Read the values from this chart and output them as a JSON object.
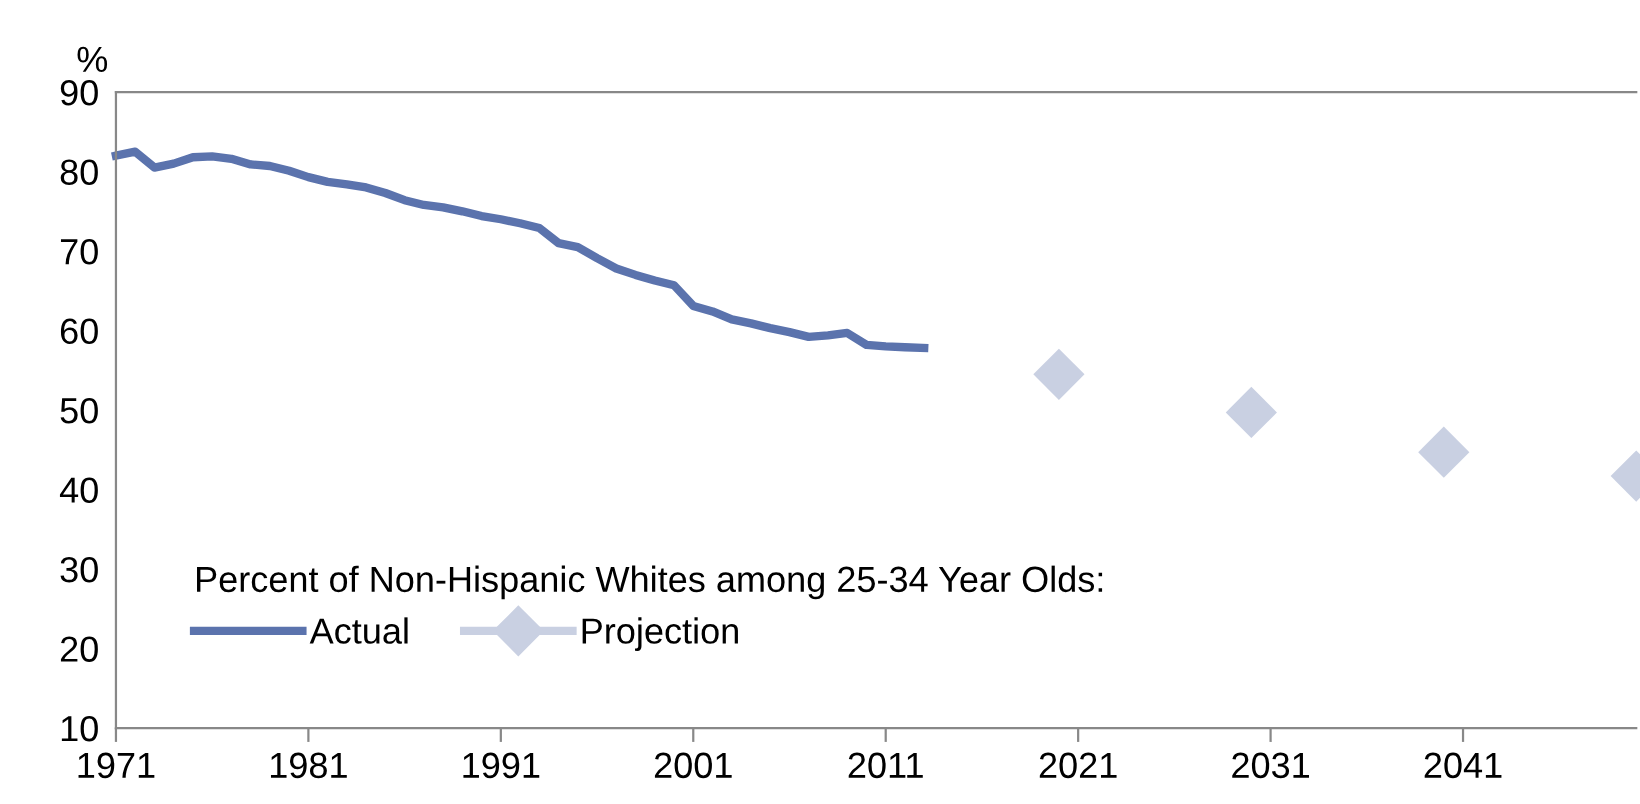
{
  "chart_data": {
    "type": "line",
    "ylabel": "%",
    "legend_title": "Percent of Non-Hispanic Whites among 25-34 Year Olds:",
    "legend": "bottom left",
    "grid": false,
    "xlim": [
      1971,
      2050
    ],
    "xticks": [
      1971,
      1981,
      1991,
      2001,
      2011,
      2021,
      2031,
      2041
    ],
    "ylim": [
      10,
      90
    ],
    "yticks": [
      10,
      20,
      30,
      40,
      50,
      60,
      70,
      80,
      90
    ],
    "series": [
      {
        "name": "Actual",
        "color": "#5b73ad",
        "marker": "none",
        "x": [
          1971,
          1972,
          1973,
          1974,
          1975,
          1976,
          1977,
          1978,
          1979,
          1980,
          1981,
          1982,
          1983,
          1984,
          1985,
          1986,
          1987,
          1988,
          1989,
          1990,
          1991,
          1992,
          1993,
          1994,
          1995,
          1996,
          1997,
          1998,
          1999,
          2000,
          2001,
          2002,
          2003,
          2004,
          2005,
          2006,
          2007,
          2008,
          2009,
          2010,
          2011,
          2012,
          2013
        ],
        "values": [
          82.0,
          82.5,
          80.5,
          81.0,
          81.8,
          81.9,
          81.6,
          80.9,
          80.7,
          80.1,
          79.3,
          78.7,
          78.4,
          78.0,
          77.3,
          76.4,
          75.8,
          75.5,
          75.0,
          74.4,
          74.0,
          73.5,
          72.9,
          71.0,
          70.5,
          69.1,
          67.8,
          67.0,
          66.3,
          65.7,
          63.1,
          62.4,
          61.4,
          60.9,
          60.3,
          59.8,
          59.2,
          59.4,
          59.7,
          58.2,
          58.0,
          57.9,
          57.8
        ]
      },
      {
        "name": "Projection",
        "type": "scatter",
        "color": "#c9d0e2",
        "marker": "diamond",
        "x": [
          2020,
          2030,
          2040,
          2050
        ],
        "values": [
          54.5,
          49.7,
          44.7,
          41.7
        ]
      }
    ]
  }
}
